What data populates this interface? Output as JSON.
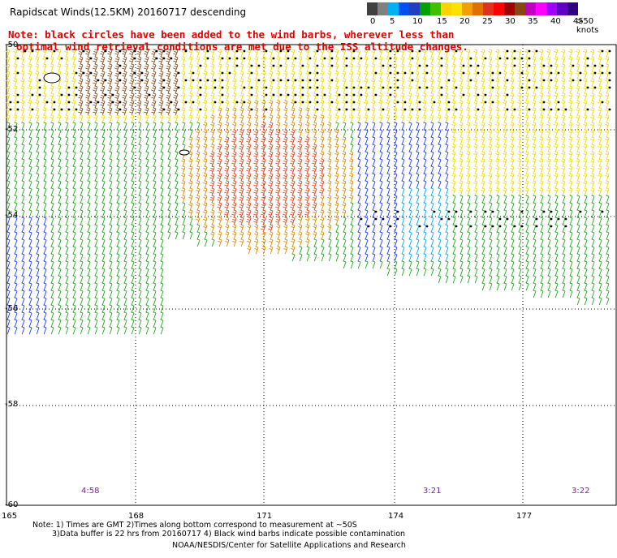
{
  "title": "Rapidscat Winds(12.5KM) 20160717 descending",
  "note_red": [
    "Note: black circles have been added to the wind barbs, wherever less than",
    "optimal wind retrieval conditions are met due to the ISS altitude changes."
  ],
  "legend": {
    "labels": [
      "0",
      "5",
      "10",
      "15",
      "20",
      "25",
      "30",
      "35",
      "40",
      "45",
      ">50 knots"
    ],
    "colors": [
      "#404040",
      "#808080",
      "#00b0f0",
      "#0050f0",
      "#1f40c0",
      "#00a000",
      "#40c000",
      "#ffd200",
      "#ffe000",
      "#f0a000",
      "#e07000",
      "#e03020",
      "#ff0000",
      "#a00000",
      "#8b4513",
      "#c000c0",
      "#ff00ff",
      "#a000ff",
      "#6000c0",
      "#300080"
    ]
  },
  "lat_labels": [
    "-50",
    "-52",
    "-54",
    "-56",
    "-58",
    "-60"
  ],
  "lon_labels": [
    "165",
    "168",
    "171",
    "174",
    "177"
  ],
  "time_labels": [
    "4:58",
    "3:21",
    "3:22"
  ],
  "footer": {
    "line1": "Note: 1) Times are GMT 2)Times along bottom correspond to measurement at ~50S",
    "line2": "3)Data buffer is 22 hrs from 20160717 4) Black wind barbs indicate possible contamination",
    "line3": "NOAA/NESDIS/Center for Satellite Applications and Research"
  },
  "speed_palette": {
    "calm_blue": "#1e3cff",
    "light_blue": "#00a8ff",
    "green": "#1fa81f",
    "yellow": "#f2dc00",
    "orange": "#e08a00",
    "red_orange": "#d8481c",
    "brown": "#8b4a1a",
    "contamination": "#000000"
  }
}
